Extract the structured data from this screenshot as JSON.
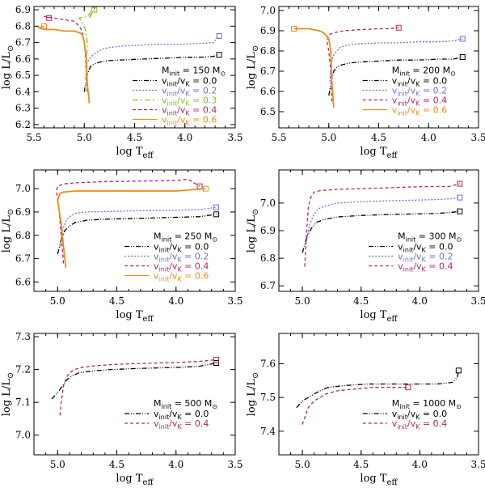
{
  "colors": {
    "v00": "#000000",
    "v02": "#6f6fd8",
    "v03": "#8fbf1f",
    "v04": "#b0285a",
    "v06": "#f08a1a"
  },
  "chart_data": [
    {
      "type": "line",
      "panel": "150",
      "xlabel": "log T_eff",
      "ylabel": "log L/L_sun",
      "xlim": [
        5.5,
        3.5
      ],
      "ylim": [
        6.18,
        6.92
      ],
      "xticks": [
        "5.5",
        "5.0",
        "4.5",
        "4.0",
        "3.5"
      ],
      "yticks": [
        "6.2",
        "6.3",
        "6.4",
        "6.5",
        "6.6",
        "6.7",
        "6.8",
        "6.9"
      ],
      "legend_title": "M_init = 150 M_sun",
      "series": [
        {
          "name": "v_init/v_K = 0.0",
          "label_lhs": "v_init/v_K",
          "label_val": "0.0",
          "color": "v00",
          "dash": "6,2,1,2,1,2",
          "x": [
            5.0,
            4.97,
            4.95,
            4.93,
            4.9,
            4.85,
            4.75,
            4.6,
            4.4,
            4.2,
            4.0,
            3.85,
            3.72,
            3.66
          ],
          "y": [
            6.4,
            6.5,
            6.54,
            6.56,
            6.57,
            6.58,
            6.59,
            6.595,
            6.6,
            6.605,
            6.61,
            6.61,
            6.615,
            6.625
          ]
        },
        {
          "name": "v_init/v_K = 0.2",
          "label_lhs": "v_init/v_K",
          "label_val": "0.2",
          "color": "v02",
          "dash": "2,2",
          "x": [
            4.99,
            4.97,
            4.95,
            4.92,
            4.88,
            4.82,
            4.75,
            4.6,
            4.4,
            4.2,
            4.0,
            3.85,
            3.72,
            3.66
          ],
          "y": [
            6.55,
            6.58,
            6.6,
            6.62,
            6.64,
            6.66,
            6.67,
            6.68,
            6.685,
            6.69,
            6.69,
            6.695,
            6.7,
            6.74
          ]
        },
        {
          "name": "v_init/v_K = 0.3",
          "label_lhs": "v_init/v_K",
          "label_val": "0.3",
          "color": "v03",
          "dash": "7,3,2,3",
          "x": [
            4.99,
            4.98,
            4.97,
            4.99,
            5.02,
            5.05,
            4.97,
            4.93,
            4.95,
            4.9
          ],
          "y": [
            6.4,
            6.55,
            6.7,
            6.78,
            6.82,
            6.85,
            6.86,
            6.89,
            6.85,
            6.9
          ]
        },
        {
          "name": "v_init/v_K = 0.4",
          "label_lhs": "v_init/v_K",
          "label_val": "0.4",
          "color": "v04",
          "dash": "4,3",
          "x": [
            4.97,
            4.98,
            5.0,
            5.02,
            5.05,
            5.1,
            5.2,
            5.3,
            5.4,
            5.35
          ],
          "y": [
            6.4,
            6.55,
            6.7,
            6.77,
            6.8,
            6.83,
            6.84,
            6.85,
            6.86,
            6.85
          ]
        },
        {
          "name": "v_init/v_K = 0.6",
          "label_lhs": "v_init/v_K",
          "label_val": "0.6",
          "color": "v06",
          "dash": "",
          "x": [
            4.95,
            4.97,
            4.98,
            5.0,
            5.02,
            5.05,
            5.1,
            5.2,
            5.3,
            5.4,
            5.45,
            5.4
          ],
          "y": [
            6.33,
            6.45,
            6.6,
            6.7,
            6.75,
            6.76,
            6.77,
            6.77,
            6.78,
            6.78,
            6.79,
            6.8
          ]
        }
      ]
    },
    {
      "type": "line",
      "panel": "200",
      "xlabel": "log T_eff",
      "ylabel": "log L/L_sun",
      "xlim": [
        5.5,
        3.5
      ],
      "ylim": [
        6.42,
        7.02
      ],
      "xticks": [
        "5.5",
        "5.0",
        "4.5",
        "4.0",
        "3.5"
      ],
      "yticks": [
        "6.5",
        "6.6",
        "6.7",
        "6.8",
        "6.9",
        "7.0"
      ],
      "legend_title": "M_init = 200 M_sun",
      "series": [
        {
          "name": "v_init/v_K = 0.0",
          "label_lhs": "v_init/v_K",
          "label_val": "0.0",
          "color": "v00",
          "dash": "6,2,1,2,1,2",
          "x": [
            5.0,
            4.97,
            4.95,
            4.92,
            4.88,
            4.8,
            4.7,
            4.5,
            4.3,
            4.1,
            3.9,
            3.75,
            3.66
          ],
          "y": [
            6.58,
            6.66,
            6.7,
            6.72,
            6.73,
            6.74,
            6.745,
            6.75,
            6.755,
            6.755,
            6.76,
            6.76,
            6.77
          ]
        },
        {
          "name": "v_init/v_K = 0.2",
          "label_lhs": "v_init/v_K",
          "label_val": "0.2",
          "color": "v02",
          "dash": "2,2",
          "x": [
            4.99,
            4.97,
            4.95,
            4.92,
            4.88,
            4.8,
            4.7,
            4.5,
            4.3,
            4.1,
            3.9,
            3.75,
            3.66
          ],
          "y": [
            6.65,
            6.75,
            6.78,
            6.8,
            6.82,
            6.83,
            6.835,
            6.84,
            6.84,
            6.845,
            6.845,
            6.85,
            6.86
          ]
        },
        {
          "name": "v_init/v_K = 0.4",
          "label_lhs": "v_init/v_K",
          "label_val": "0.4",
          "color": "v04",
          "dash": "4,3",
          "x": [
            4.97,
            4.98,
            5.0,
            5.02,
            5.0,
            4.95,
            4.85,
            4.7,
            4.5,
            4.4,
            4.3
          ],
          "y": [
            6.55,
            6.7,
            6.8,
            6.85,
            6.88,
            6.89,
            6.9,
            6.905,
            6.91,
            6.91,
            6.915
          ]
        },
        {
          "name": "v_init/v_K = 0.6",
          "label_lhs": "v_init/v_K",
          "label_val": "0.6",
          "color": "v06",
          "dash": "",
          "x": [
            4.95,
            4.97,
            4.98,
            5.0,
            5.05,
            5.1,
            5.2,
            5.3,
            5.35
          ],
          "y": [
            6.52,
            6.65,
            6.8,
            6.86,
            6.89,
            6.9,
            6.91,
            6.91,
            6.91
          ]
        }
      ]
    },
    {
      "type": "line",
      "panel": "250",
      "xlabel": "log T_eff",
      "ylabel": "log L/L_sun",
      "xlim": [
        5.2,
        3.5
      ],
      "ylim": [
        6.56,
        7.08
      ],
      "xticks": [
        "5.0",
        "4.5",
        "4.0",
        "3.5"
      ],
      "yticks": [
        "6.6",
        "6.7",
        "6.8",
        "6.9",
        "7.0"
      ],
      "legend_title": "M_init = 250 M_sun",
      "series": [
        {
          "name": "v_init/v_K = 0.0",
          "label_lhs": "v_init/v_K",
          "label_val": "0.0",
          "color": "v00",
          "dash": "6,2,1,2,1,2",
          "x": [
            5.0,
            4.97,
            4.94,
            4.9,
            4.85,
            4.75,
            4.55,
            4.35,
            4.15,
            3.95,
            3.8,
            3.66
          ],
          "y": [
            6.72,
            6.78,
            6.82,
            6.84,
            6.855,
            6.865,
            6.87,
            6.872,
            6.875,
            6.878,
            6.88,
            6.89
          ]
        },
        {
          "name": "v_init/v_K = 0.2",
          "label_lhs": "v_init/v_K",
          "label_val": "0.2",
          "color": "v02",
          "dash": "2,2",
          "x": [
            4.98,
            4.96,
            4.93,
            4.9,
            4.85,
            4.75,
            4.55,
            4.35,
            4.15,
            3.95,
            3.8,
            3.66
          ],
          "y": [
            6.75,
            6.82,
            6.86,
            6.88,
            6.895,
            6.9,
            6.902,
            6.905,
            6.906,
            6.908,
            6.91,
            6.92
          ]
        },
        {
          "name": "v_init/v_K = 0.4",
          "label_lhs": "v_init/v_K",
          "label_val": "0.4",
          "color": "v04",
          "dash": "4,3",
          "x": [
            4.95,
            4.97,
            4.99,
            5.01,
            5.0,
            4.95,
            4.85,
            4.6,
            4.3,
            4.0,
            3.9,
            3.8
          ],
          "y": [
            6.68,
            6.8,
            6.92,
            6.99,
            7.01,
            7.02,
            7.025,
            7.03,
            7.032,
            7.035,
            7.04,
            7.01
          ]
        },
        {
          "name": "v_init/v_K = 0.6",
          "label_lhs": "v_init/v_K",
          "label_val": "0.6",
          "color": "v06",
          "dash": "",
          "x": [
            4.93,
            4.95,
            4.97,
            5.0,
            4.98,
            4.95,
            4.85,
            4.6,
            4.3,
            4.0,
            3.75
          ],
          "y": [
            6.66,
            6.75,
            6.85,
            6.95,
            6.98,
            6.985,
            6.99,
            6.99,
            6.99,
            6.99,
            7.0
          ]
        }
      ]
    },
    {
      "type": "line",
      "panel": "300",
      "xlabel": "log T_eff",
      "ylabel": "log L/L_sun",
      "xlim": [
        5.2,
        3.5
      ],
      "ylim": [
        6.68,
        7.12
      ],
      "xticks": [
        "5.0",
        "4.5",
        "4.0",
        "3.5"
      ],
      "yticks": [
        "6.7",
        "6.8",
        "6.9",
        "7.0"
      ],
      "legend_title": "M_init = 300 M_sun",
      "series": [
        {
          "name": "v_init/v_K = 0.0",
          "label_lhs": "v_init/v_K",
          "label_val": "0.0",
          "color": "v00",
          "dash": "6,2,1,2,1,2",
          "x": [
            5.0,
            4.96,
            4.92,
            4.88,
            4.82,
            4.7,
            4.5,
            4.3,
            4.1,
            3.9,
            3.75,
            3.66
          ],
          "y": [
            6.82,
            6.88,
            6.91,
            6.93,
            6.94,
            6.95,
            6.955,
            6.958,
            6.96,
            6.962,
            6.965,
            6.97
          ]
        },
        {
          "name": "v_init/v_K = 0.2",
          "label_lhs": "v_init/v_K",
          "label_val": "0.2",
          "color": "v02",
          "dash": "2,2",
          "x": [
            4.97,
            4.94,
            4.9,
            4.86,
            4.8,
            4.7,
            4.5,
            4.3,
            4.1,
            3.9,
            3.75,
            3.66
          ],
          "y": [
            6.85,
            6.92,
            6.96,
            6.98,
            6.99,
            7.0,
            7.005,
            7.008,
            7.01,
            7.012,
            7.015,
            7.02
          ]
        },
        {
          "name": "v_init/v_K = 0.4",
          "label_lhs": "v_init/v_K",
          "label_val": "0.4",
          "color": "v04",
          "dash": "4,3",
          "x": [
            4.98,
            4.97,
            4.96,
            4.95,
            4.93,
            4.9,
            4.85,
            4.7,
            4.5,
            4.3,
            4.1,
            3.9,
            3.75,
            3.66
          ],
          "y": [
            6.77,
            6.85,
            6.92,
            6.98,
            7.02,
            7.04,
            7.045,
            7.05,
            7.052,
            7.055,
            7.058,
            7.06,
            7.06,
            7.07
          ]
        }
      ]
    },
    {
      "type": "line",
      "panel": "500",
      "xlabel": "log T_eff",
      "ylabel": "log L/L_sun",
      "xlim": [
        5.2,
        3.5
      ],
      "ylim": [
        6.94,
        7.31
      ],
      "xticks": [
        "5.0",
        "4.5",
        "4.0",
        "3.5"
      ],
      "yticks": [
        "7.0",
        "7.1",
        "7.2",
        "7.3"
      ],
      "legend_title": "M_init = 500 M_sun",
      "series": [
        {
          "name": "v_init/v_K = 0.0",
          "label_lhs": "v_init/v_K",
          "label_val": "0.0",
          "color": "v00",
          "dash": "6,2,1,2,1,2",
          "x": [
            5.05,
            5.0,
            4.96,
            4.92,
            4.88,
            4.82,
            4.72,
            4.55,
            4.35,
            4.15,
            3.95,
            3.8,
            3.66
          ],
          "y": [
            7.11,
            7.13,
            7.15,
            7.17,
            7.18,
            7.19,
            7.195,
            7.2,
            7.203,
            7.205,
            7.207,
            7.21,
            7.22
          ]
        },
        {
          "name": "v_init/v_K = 0.4",
          "label_lhs": "v_init/v_K",
          "label_val": "0.4",
          "color": "v04",
          "dash": "4,3",
          "x": [
            4.98,
            4.97,
            4.95,
            4.92,
            4.88,
            4.82,
            4.72,
            4.55,
            4.35,
            4.15,
            3.95,
            3.8,
            3.66
          ],
          "y": [
            7.06,
            7.1,
            7.15,
            7.18,
            7.195,
            7.205,
            7.21,
            7.215,
            7.218,
            7.22,
            7.222,
            7.225,
            7.23
          ]
        }
      ]
    },
    {
      "type": "line",
      "panel": "1000",
      "xlabel": "log T_eff",
      "ylabel": "log L/L_sun",
      "xlim": [
        5.2,
        3.5
      ],
      "ylim": [
        7.33,
        7.69
      ],
      "xticks": [
        "5.0",
        "4.5",
        "4.0",
        "3.5"
      ],
      "yticks": [
        "7.4",
        "7.5",
        "7.6"
      ],
      "legend_title": "M_init = 1000 M_sun",
      "series": [
        {
          "name": "v_init/v_K = 0.0",
          "label_lhs": "v_init/v_K",
          "label_val": "0.0",
          "color": "v00",
          "dash": "6,2,1,2,1,2",
          "x": [
            5.05,
            5.0,
            4.95,
            4.9,
            4.85,
            4.78,
            4.65,
            4.45,
            4.25,
            4.05,
            3.85,
            3.72,
            3.68,
            3.67
          ],
          "y": [
            7.47,
            7.49,
            7.5,
            7.51,
            7.52,
            7.53,
            7.535,
            7.54,
            7.54,
            7.54,
            7.54,
            7.545,
            7.56,
            7.58
          ]
        },
        {
          "name": "v_init/v_K = 0.4",
          "label_lhs": "v_init/v_K",
          "label_val": "0.4",
          "color": "v04",
          "dash": "4,3",
          "x": [
            5.0,
            4.98,
            4.95,
            4.9,
            4.85,
            4.8,
            4.7,
            4.55,
            4.4,
            4.25,
            4.1
          ],
          "y": [
            7.42,
            7.44,
            7.47,
            7.49,
            7.5,
            7.51,
            7.52,
            7.525,
            7.53,
            7.53,
            7.53
          ]
        }
      ]
    }
  ]
}
